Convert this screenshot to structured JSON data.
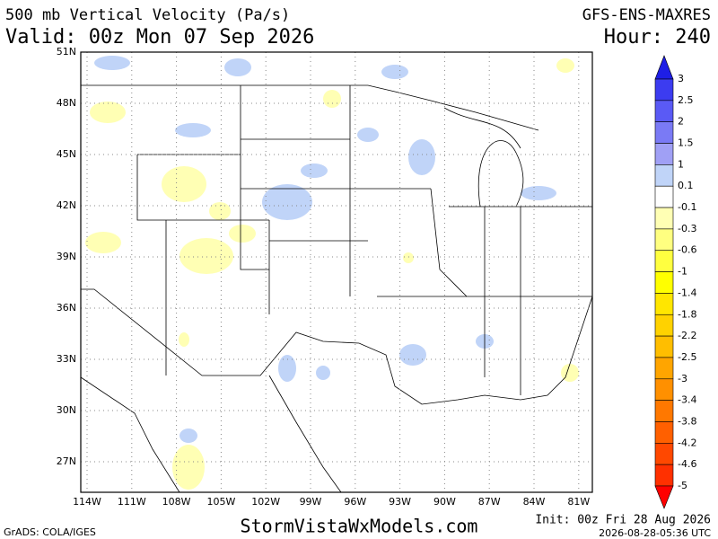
{
  "header": {
    "title": "500 mb Vertical Velocity (Pa/s)",
    "model": "GFS-ENS-MAXRES",
    "valid": "Valid: 00z Mon 07 Sep 2026",
    "hour": "Hour: 240"
  },
  "map": {
    "lat_labels": [
      "51N",
      "48N",
      "45N",
      "42N",
      "39N",
      "36N",
      "33N",
      "30N",
      "27N"
    ],
    "lon_labels": [
      "114W",
      "111W",
      "108W",
      "105W",
      "102W",
      "99W",
      "96W",
      "93W",
      "90W",
      "87W",
      "84W",
      "81W"
    ]
  },
  "colorbar": {
    "labels": [
      "3",
      "2.5",
      "2",
      "1.5",
      "1",
      "0.1",
      "-0.1",
      "-0.3",
      "-0.6",
      "-1",
      "-1.4",
      "-1.8",
      "-2.2",
      "-2.5",
      "-3",
      "-3.4",
      "-3.8",
      "-4.2",
      "-4.6",
      "-5"
    ],
    "colors": [
      "#1e1ee6",
      "#3c3cf0",
      "#5a5af5",
      "#7a7af5",
      "#a0a0f5",
      "#c0d4f8",
      "#ffffff",
      "#ffffb4",
      "#ffff80",
      "#ffff40",
      "#ffff00",
      "#ffe600",
      "#ffd200",
      "#ffbe00",
      "#ffa500",
      "#ff9000",
      "#ff7800",
      "#ff6000",
      "#ff4800",
      "#ff3000",
      "#ff0000"
    ]
  },
  "footer": {
    "grads": "GrADS: COLA/IGES",
    "site": "StormVistaWxModels.com",
    "init": "Init: 00z Fri 28 Aug 2026",
    "stamp": "2026-08-28-05:36 UTC"
  }
}
